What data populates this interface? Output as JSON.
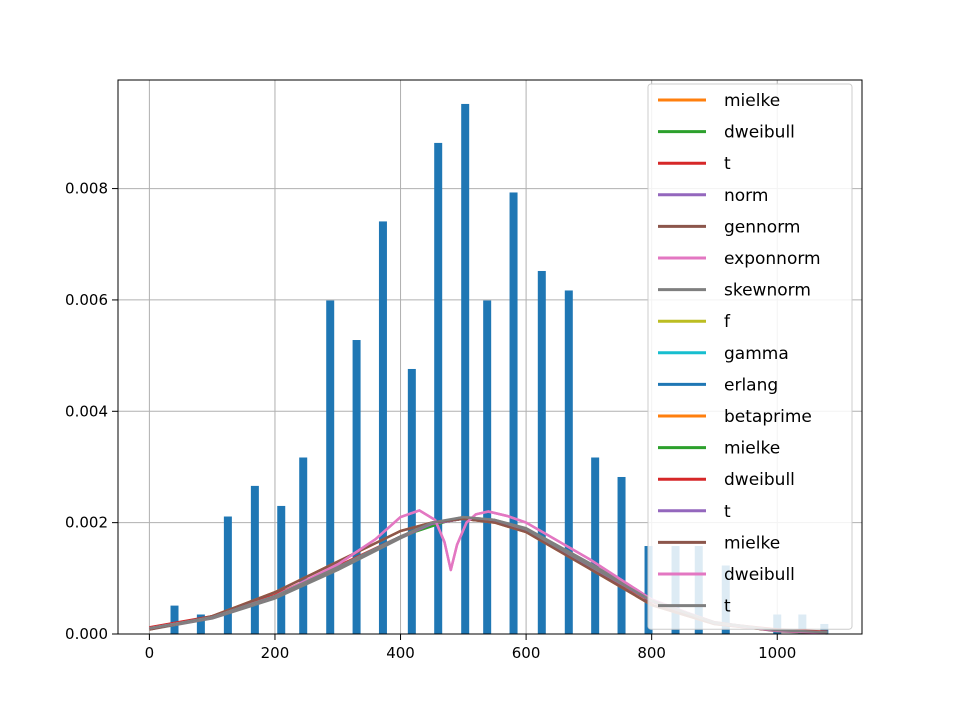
{
  "chart_data": {
    "type": "bar",
    "title": "",
    "xlabel": "",
    "ylabel": "",
    "xlim": [
      -50,
      1135
    ],
    "ylim": [
      0,
      0.00995
    ],
    "grid": true,
    "legend_position": "top-right",
    "xticks": [
      0,
      200,
      400,
      600,
      800,
      1000
    ],
    "xtick_labels": [
      "0",
      "200",
      "400",
      "600",
      "800",
      "1000"
    ],
    "yticks": [
      0,
      0.002,
      0.004,
      0.006,
      0.008
    ],
    "ytick_labels": [
      "0.000",
      "0.002",
      "0.004",
      "0.006",
      "0.008"
    ],
    "bar_color": "#1f77b4",
    "histogram": {
      "x": [
        40,
        82,
        125,
        168,
        210,
        245,
        288,
        330,
        372,
        418,
        460,
        503,
        538,
        580,
        625,
        668,
        710,
        752,
        795,
        838,
        875,
        918,
        1000,
        1040,
        1075
      ],
      "values": [
        0.00051,
        0.00035,
        0.00211,
        0.00266,
        0.0023,
        0.00317,
        0.00599,
        0.00528,
        0.00741,
        0.00476,
        0.00882,
        0.00952,
        0.00599,
        0.00793,
        0.00652,
        0.00617,
        0.00317,
        0.00282,
        0.00158,
        0.00158,
        0.00158,
        0.00123,
        0.00035,
        0.00035,
        0.00018
      ]
    },
    "series": [
      {
        "name": "mielke",
        "color": "#ff7f0e",
        "x": [
          0,
          100,
          200,
          300,
          400,
          450,
          500,
          550,
          600,
          700,
          800,
          900,
          1000,
          1080
        ],
        "y": [
          8e-05,
          0.00032,
          0.00075,
          0.0013,
          0.00185,
          0.002,
          0.00207,
          0.002,
          0.00183,
          0.00118,
          0.00052,
          0.00018,
          6e-05,
          2e-05
        ]
      },
      {
        "name": "dweibull",
        "color": "#2ca02c",
        "x": [
          0,
          100,
          200,
          300,
          400,
          480,
          500,
          560,
          600,
          700,
          800,
          900,
          1000,
          1080
        ],
        "y": [
          0.0001,
          0.0003,
          0.00068,
          0.0012,
          0.00175,
          0.00205,
          0.00208,
          0.002,
          0.00188,
          0.00125,
          0.0006,
          0.0002,
          7e-05,
          3e-05
        ]
      },
      {
        "name": "t",
        "color": "#d62728",
        "x": [
          0,
          100,
          200,
          300,
          400,
          450,
          500,
          550,
          600,
          700,
          800,
          900,
          1000,
          1080
        ],
        "y": [
          0.00012,
          0.00032,
          0.0007,
          0.00122,
          0.00175,
          0.00198,
          0.00208,
          0.00202,
          0.00185,
          0.00122,
          0.00058,
          0.0002,
          8e-05,
          4e-05
        ]
      },
      {
        "name": "norm",
        "color": "#9467bd",
        "x": [
          0,
          100,
          200,
          300,
          400,
          450,
          500,
          550,
          600,
          700,
          800,
          900,
          1000,
          1080
        ],
        "y": [
          0.0001,
          0.0003,
          0.00068,
          0.0012,
          0.00175,
          0.00198,
          0.00208,
          0.00202,
          0.00186,
          0.00124,
          0.0006,
          0.00021,
          6e-05,
          2e-05
        ]
      },
      {
        "name": "gennorm",
        "color": "#8c564b",
        "x": [
          0,
          100,
          200,
          300,
          400,
          450,
          500,
          550,
          600,
          700,
          800,
          900,
          1000,
          1080
        ],
        "y": [
          0.0001,
          0.0003,
          0.00068,
          0.0012,
          0.00175,
          0.002,
          0.00208,
          0.00202,
          0.00186,
          0.00124,
          0.0006,
          0.00021,
          6e-05,
          2e-05
        ]
      },
      {
        "name": "exponnorm",
        "color": "#e377c2",
        "x": [
          0,
          100,
          200,
          300,
          360,
          400,
          430,
          455,
          470,
          480,
          490,
          505,
          520,
          540,
          570,
          600,
          700,
          800,
          900,
          1000,
          1080
        ],
        "y": [
          0.0001,
          0.0003,
          0.00068,
          0.00125,
          0.0017,
          0.0021,
          0.00222,
          0.00205,
          0.00165,
          0.00115,
          0.0016,
          0.002,
          0.00215,
          0.0022,
          0.00212,
          0.002,
          0.00135,
          0.00062,
          0.0002,
          6e-05,
          2e-05
        ]
      },
      {
        "name": "skewnorm",
        "color": "#7f7f7f",
        "x": [
          0,
          100,
          200,
          300,
          400,
          450,
          500,
          550,
          600,
          700,
          800,
          900,
          1000,
          1080
        ],
        "y": [
          8e-05,
          0.00028,
          0.00064,
          0.00115,
          0.00172,
          0.00198,
          0.0021,
          0.00205,
          0.0019,
          0.00128,
          0.00062,
          0.0002,
          5e-05,
          1e-05
        ]
      },
      {
        "name": "f",
        "color": "#bcbd22",
        "x": [
          0,
          100,
          200,
          300,
          400,
          450,
          500,
          550,
          600,
          700,
          800,
          900,
          1000,
          1080
        ],
        "y": [
          0.0001,
          0.0003,
          0.00068,
          0.0012,
          0.00175,
          0.00198,
          0.00207,
          0.00201,
          0.00185,
          0.00123,
          0.00059,
          0.0002,
          6e-05,
          2e-05
        ]
      },
      {
        "name": "gamma",
        "color": "#17becf",
        "x": [
          0,
          100,
          200,
          300,
          400,
          450,
          500,
          550,
          600,
          700,
          800,
          900,
          1000,
          1080
        ],
        "y": [
          0.0001,
          0.0003,
          0.00068,
          0.0012,
          0.00175,
          0.00198,
          0.00207,
          0.00201,
          0.00185,
          0.00123,
          0.00059,
          0.0002,
          6e-05,
          2e-05
        ]
      },
      {
        "name": "erlang",
        "color": "#1f77b4",
        "x": [
          0,
          100,
          200,
          300,
          400,
          450,
          500,
          550,
          600,
          700,
          800,
          900,
          1000,
          1080
        ],
        "y": [
          0.0001,
          0.0003,
          0.00068,
          0.0012,
          0.00175,
          0.00198,
          0.00207,
          0.00201,
          0.00185,
          0.00123,
          0.00059,
          0.0002,
          6e-05,
          2e-05
        ]
      },
      {
        "name": "betaprime",
        "color": "#ff7f0e",
        "x": [
          0,
          100,
          200,
          300,
          400,
          450,
          500,
          550,
          600,
          700,
          800,
          900,
          1000,
          1080
        ],
        "y": [
          0.0001,
          0.0003,
          0.00068,
          0.0012,
          0.00175,
          0.00198,
          0.00207,
          0.00201,
          0.00185,
          0.00123,
          0.00059,
          0.0002,
          6e-05,
          2e-05
        ]
      },
      {
        "name": "mielke",
        "color": "#2ca02c",
        "x": [
          0,
          100,
          200,
          300,
          400,
          450,
          500,
          550,
          600,
          700,
          800,
          900,
          1000,
          1080
        ],
        "y": [
          0.0001,
          0.0003,
          0.00068,
          0.0012,
          0.00175,
          0.00198,
          0.00207,
          0.00201,
          0.00185,
          0.00123,
          0.00059,
          0.0002,
          6e-05,
          2e-05
        ]
      },
      {
        "name": "dweibull",
        "color": "#d62728",
        "x": [
          0,
          100,
          200,
          300,
          400,
          450,
          500,
          550,
          600,
          700,
          800,
          900,
          1000,
          1080
        ],
        "y": [
          0.0001,
          0.0003,
          0.00068,
          0.0012,
          0.00175,
          0.00198,
          0.00207,
          0.00201,
          0.00185,
          0.00123,
          0.00059,
          0.0002,
          6e-05,
          2e-05
        ]
      },
      {
        "name": "t",
        "color": "#9467bd",
        "x": [
          0,
          100,
          200,
          300,
          400,
          450,
          500,
          550,
          600,
          700,
          800,
          900,
          1000,
          1080
        ],
        "y": [
          0.0001,
          0.0003,
          0.00068,
          0.0012,
          0.00175,
          0.00198,
          0.00207,
          0.00201,
          0.00185,
          0.00123,
          0.00059,
          0.0002,
          6e-05,
          2e-05
        ]
      },
      {
        "name": "mielke",
        "color": "#8c564b",
        "x": [
          0,
          100,
          200,
          300,
          400,
          450,
          500,
          550,
          600,
          700,
          800,
          900,
          1000,
          1080
        ],
        "y": [
          8e-05,
          0.00032,
          0.00075,
          0.0013,
          0.00185,
          0.002,
          0.00207,
          0.002,
          0.00183,
          0.00118,
          0.00052,
          0.00018,
          6e-05,
          2e-05
        ]
      },
      {
        "name": "dweibull",
        "color": "#e377c2",
        "x": [
          0,
          100,
          200,
          300,
          360,
          400,
          430,
          455,
          470,
          480,
          490,
          505,
          520,
          540,
          570,
          600,
          700,
          800,
          900,
          1000,
          1080
        ],
        "y": [
          0.0001,
          0.0003,
          0.00068,
          0.00125,
          0.0017,
          0.0021,
          0.00222,
          0.00205,
          0.00165,
          0.00115,
          0.0016,
          0.002,
          0.00215,
          0.0022,
          0.00212,
          0.002,
          0.00135,
          0.00062,
          0.0002,
          6e-05,
          2e-05
        ]
      },
      {
        "name": "t",
        "color": "#7f7f7f",
        "x": [
          0,
          100,
          200,
          300,
          400,
          450,
          500,
          550,
          600,
          700,
          800,
          900,
          1000,
          1080
        ],
        "y": [
          0.0001,
          0.0003,
          0.00068,
          0.0012,
          0.00175,
          0.002,
          0.0021,
          0.00205,
          0.00188,
          0.00124,
          0.0006,
          0.0002,
          7e-05,
          3e-05
        ]
      }
    ]
  }
}
